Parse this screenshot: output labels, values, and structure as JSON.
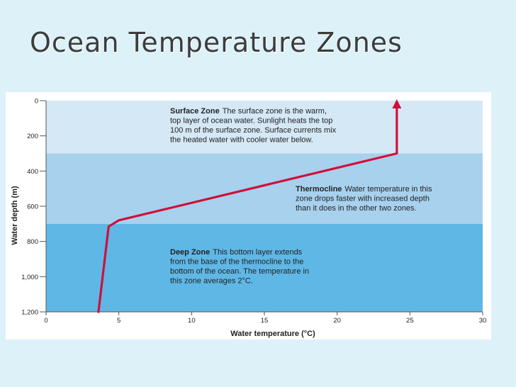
{
  "slide": {
    "title": "Ocean Temperature Zones",
    "background": "#ddf1f9"
  },
  "chart_data": {
    "type": "line",
    "title": "",
    "xlabel": "Water temperature (°C)",
    "ylabel": "Water depth (m)",
    "xlim": [
      0,
      30
    ],
    "ylim": [
      1200,
      0
    ],
    "x_ticks": [
      0,
      5,
      10,
      15,
      20,
      25,
      30
    ],
    "x_tick_labels": [
      "0",
      "5",
      "10",
      "15",
      "20",
      "25",
      "30"
    ],
    "y_ticks": [
      0,
      200,
      400,
      600,
      800,
      1000,
      1200
    ],
    "y_tick_labels": [
      "0",
      "200",
      "400",
      "600",
      "800",
      "1,000",
      "1,200"
    ],
    "grid": false,
    "series": [
      {
        "color": "#d0103a",
        "points": [
          {
            "x": 3.6,
            "y": 1200
          },
          {
            "x": 4.3,
            "y": 715
          },
          {
            "x": 5.0,
            "y": 680
          },
          {
            "x": 24.1,
            "y": 300
          },
          {
            "x": 24.1,
            "y": 0
          }
        ],
        "arrow_at_end": true
      }
    ],
    "zones": [
      {
        "key": "surface",
        "depth_from": 0,
        "depth_to": 300,
        "color": "#d5e8f6",
        "heading": "Surface Zone",
        "lines": [
          "The surface zone is the warm,",
          "top layer of ocean water. Sunlight heats the top",
          "100 m of the surface zone. Surface currents mix",
          "the heated water with cooler water below."
        ]
      },
      {
        "key": "thermocline",
        "depth_from": 300,
        "depth_to": 700,
        "color": "#a8d1ee",
        "heading": "Thermocline",
        "lines": [
          "Water temperature in this",
          "zone drops faster with increased depth",
          "than it does in the other two zones."
        ]
      },
      {
        "key": "deep",
        "depth_from": 700,
        "depth_to": 1200,
        "color": "#5fb7e6",
        "heading": "Deep Zone",
        "lines": [
          "This bottom layer extends",
          "from the base of the thermocline to the",
          "bottom of the ocean. The temperature in",
          "this zone averages 2°C."
        ]
      }
    ]
  }
}
